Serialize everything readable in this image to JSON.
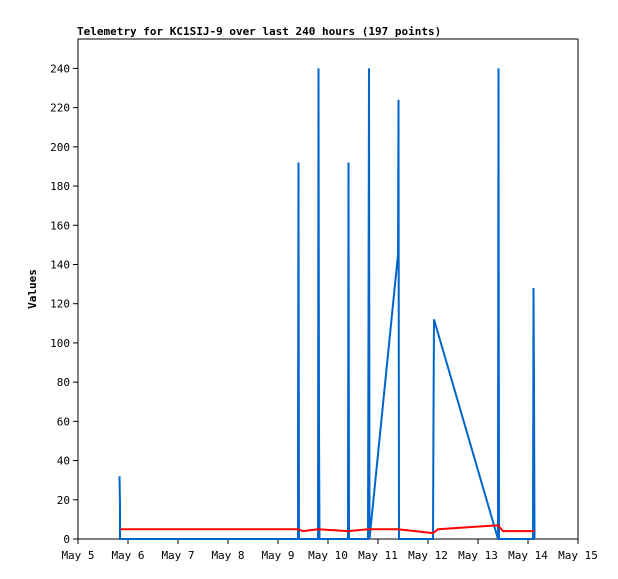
{
  "chart_data": {
    "type": "line",
    "title": "Telemetry for KC1SIJ-9 over last 240 hours (197 points)",
    "xlabel": "",
    "ylabel": "Values",
    "xlim": [
      "2023-05-05",
      "2023-05-15"
    ],
    "ylim": [
      0,
      255
    ],
    "x_tick_labels": [
      "May 5",
      "May 6",
      "May 7",
      "May 8",
      "May 9",
      "May 10",
      "May 11",
      "May 12",
      "May 13",
      "May 14",
      "May 15"
    ],
    "y_ticks": [
      0,
      20,
      40,
      60,
      80,
      100,
      120,
      140,
      160,
      180,
      200,
      220,
      240
    ],
    "grid": false,
    "legend": "none",
    "series": [
      {
        "color": "#0066cc",
        "points": [
          [
            5.83,
            32
          ],
          [
            5.84,
            17
          ],
          [
            5.84,
            0
          ],
          [
            5.85,
            0
          ],
          [
            9.4,
            0
          ],
          [
            9.4,
            48
          ],
          [
            9.41,
            192
          ],
          [
            9.42,
            0
          ],
          [
            9.8,
            0
          ],
          [
            9.81,
            240
          ],
          [
            9.82,
            56
          ],
          [
            9.83,
            0
          ],
          [
            10.4,
            0
          ],
          [
            10.41,
            192
          ],
          [
            10.42,
            0
          ],
          [
            10.8,
            0
          ],
          [
            10.81,
            112
          ],
          [
            10.82,
            240
          ],
          [
            10.83,
            0
          ],
          [
            11.4,
            145
          ],
          [
            11.41,
            224
          ],
          [
            11.42,
            0
          ],
          [
            12.1,
            0
          ],
          [
            12.11,
            64
          ],
          [
            12.12,
            112
          ],
          [
            13.4,
            0
          ],
          [
            13.41,
            240
          ],
          [
            13.42,
            0
          ],
          [
            14.1,
            0
          ],
          [
            14.11,
            128
          ],
          [
            14.12,
            80
          ],
          [
            14.13,
            0
          ]
        ]
      },
      {
        "color": "#ff0000",
        "points": [
          [
            5.85,
            5
          ],
          [
            9.4,
            5
          ],
          [
            9.5,
            4
          ],
          [
            9.8,
            5
          ],
          [
            10.4,
            4
          ],
          [
            10.8,
            5
          ],
          [
            11.4,
            5
          ],
          [
            12.1,
            3
          ],
          [
            12.2,
            5
          ],
          [
            12.8,
            6
          ],
          [
            13.4,
            7
          ],
          [
            13.5,
            4
          ],
          [
            14.13,
            4
          ]
        ]
      }
    ]
  }
}
